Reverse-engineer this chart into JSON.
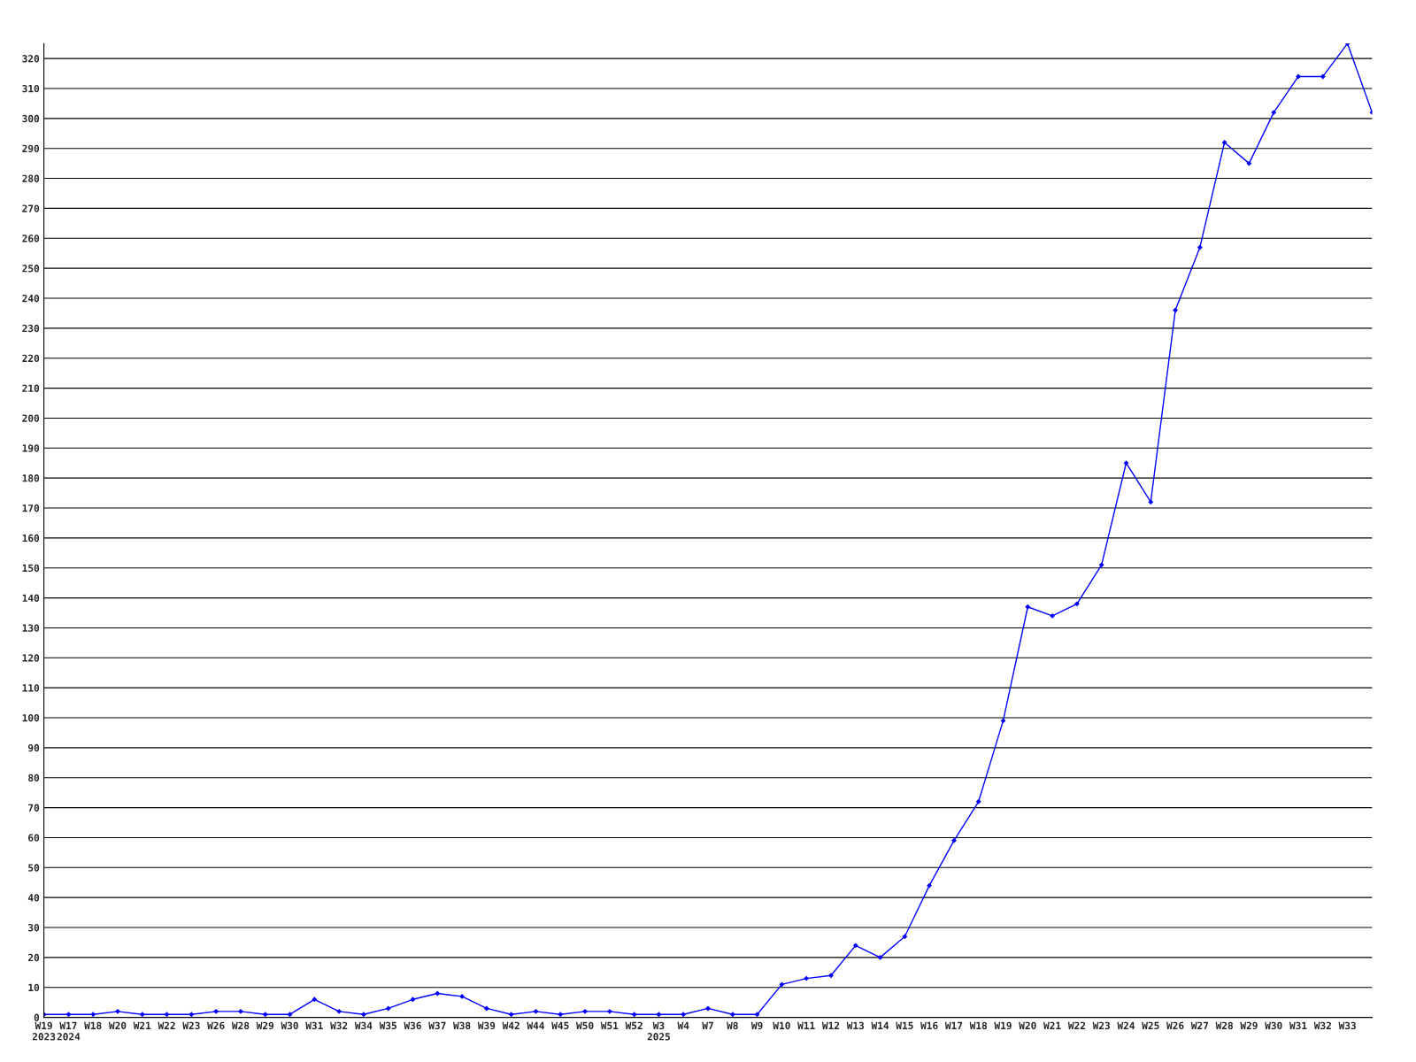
{
  "chart_data": {
    "type": "line",
    "categories": [
      "W19\n2023",
      "W17\n2024",
      "W18",
      "W20",
      "W21",
      "W22",
      "W23",
      "W26",
      "W28",
      "W29",
      "W30",
      "W31",
      "W32",
      "W34",
      "W35",
      "W36",
      "W37",
      "W38",
      "W39",
      "W42",
      "W44",
      "W45",
      "W50",
      "W51",
      "W52",
      "W3\n2025",
      "W4",
      "W7",
      "W8",
      "W9",
      "W10",
      "W11",
      "W12",
      "W13",
      "W14",
      "W15",
      "W16",
      "W17",
      "W18",
      "W19",
      "W20",
      "W21",
      "W22",
      "W23",
      "W24",
      "W25",
      "W26",
      "W27",
      "W28",
      "W29",
      "W30",
      "W31",
      "W32",
      "W33",
      null
    ],
    "series": [
      {
        "color": "#0000ff",
        "values": [
          1,
          1,
          1,
          2,
          1,
          1,
          1,
          2,
          2,
          1,
          1,
          6,
          2,
          1,
          3,
          6,
          8,
          7,
          3,
          1,
          2,
          1,
          2,
          2,
          1,
          1,
          1,
          3,
          1,
          1,
          11,
          13,
          14,
          24,
          20,
          27,
          44,
          59,
          72,
          99,
          137,
          134,
          138,
          151,
          185,
          172,
          236,
          257,
          292,
          285,
          302,
          314,
          314,
          325,
          302
        ]
      }
    ],
    "ylim": [
      0,
      325
    ],
    "yticks": [
      0,
      10,
      20,
      30,
      40,
      50,
      60,
      70,
      80,
      90,
      100,
      110,
      120,
      130,
      140,
      150,
      160,
      170,
      180,
      190,
      200,
      210,
      220,
      230,
      240,
      250,
      260,
      270,
      280,
      290,
      300,
      310,
      320
    ],
    "grid": "y",
    "marker": "diamond",
    "line_style": "solid",
    "legend": false
  }
}
